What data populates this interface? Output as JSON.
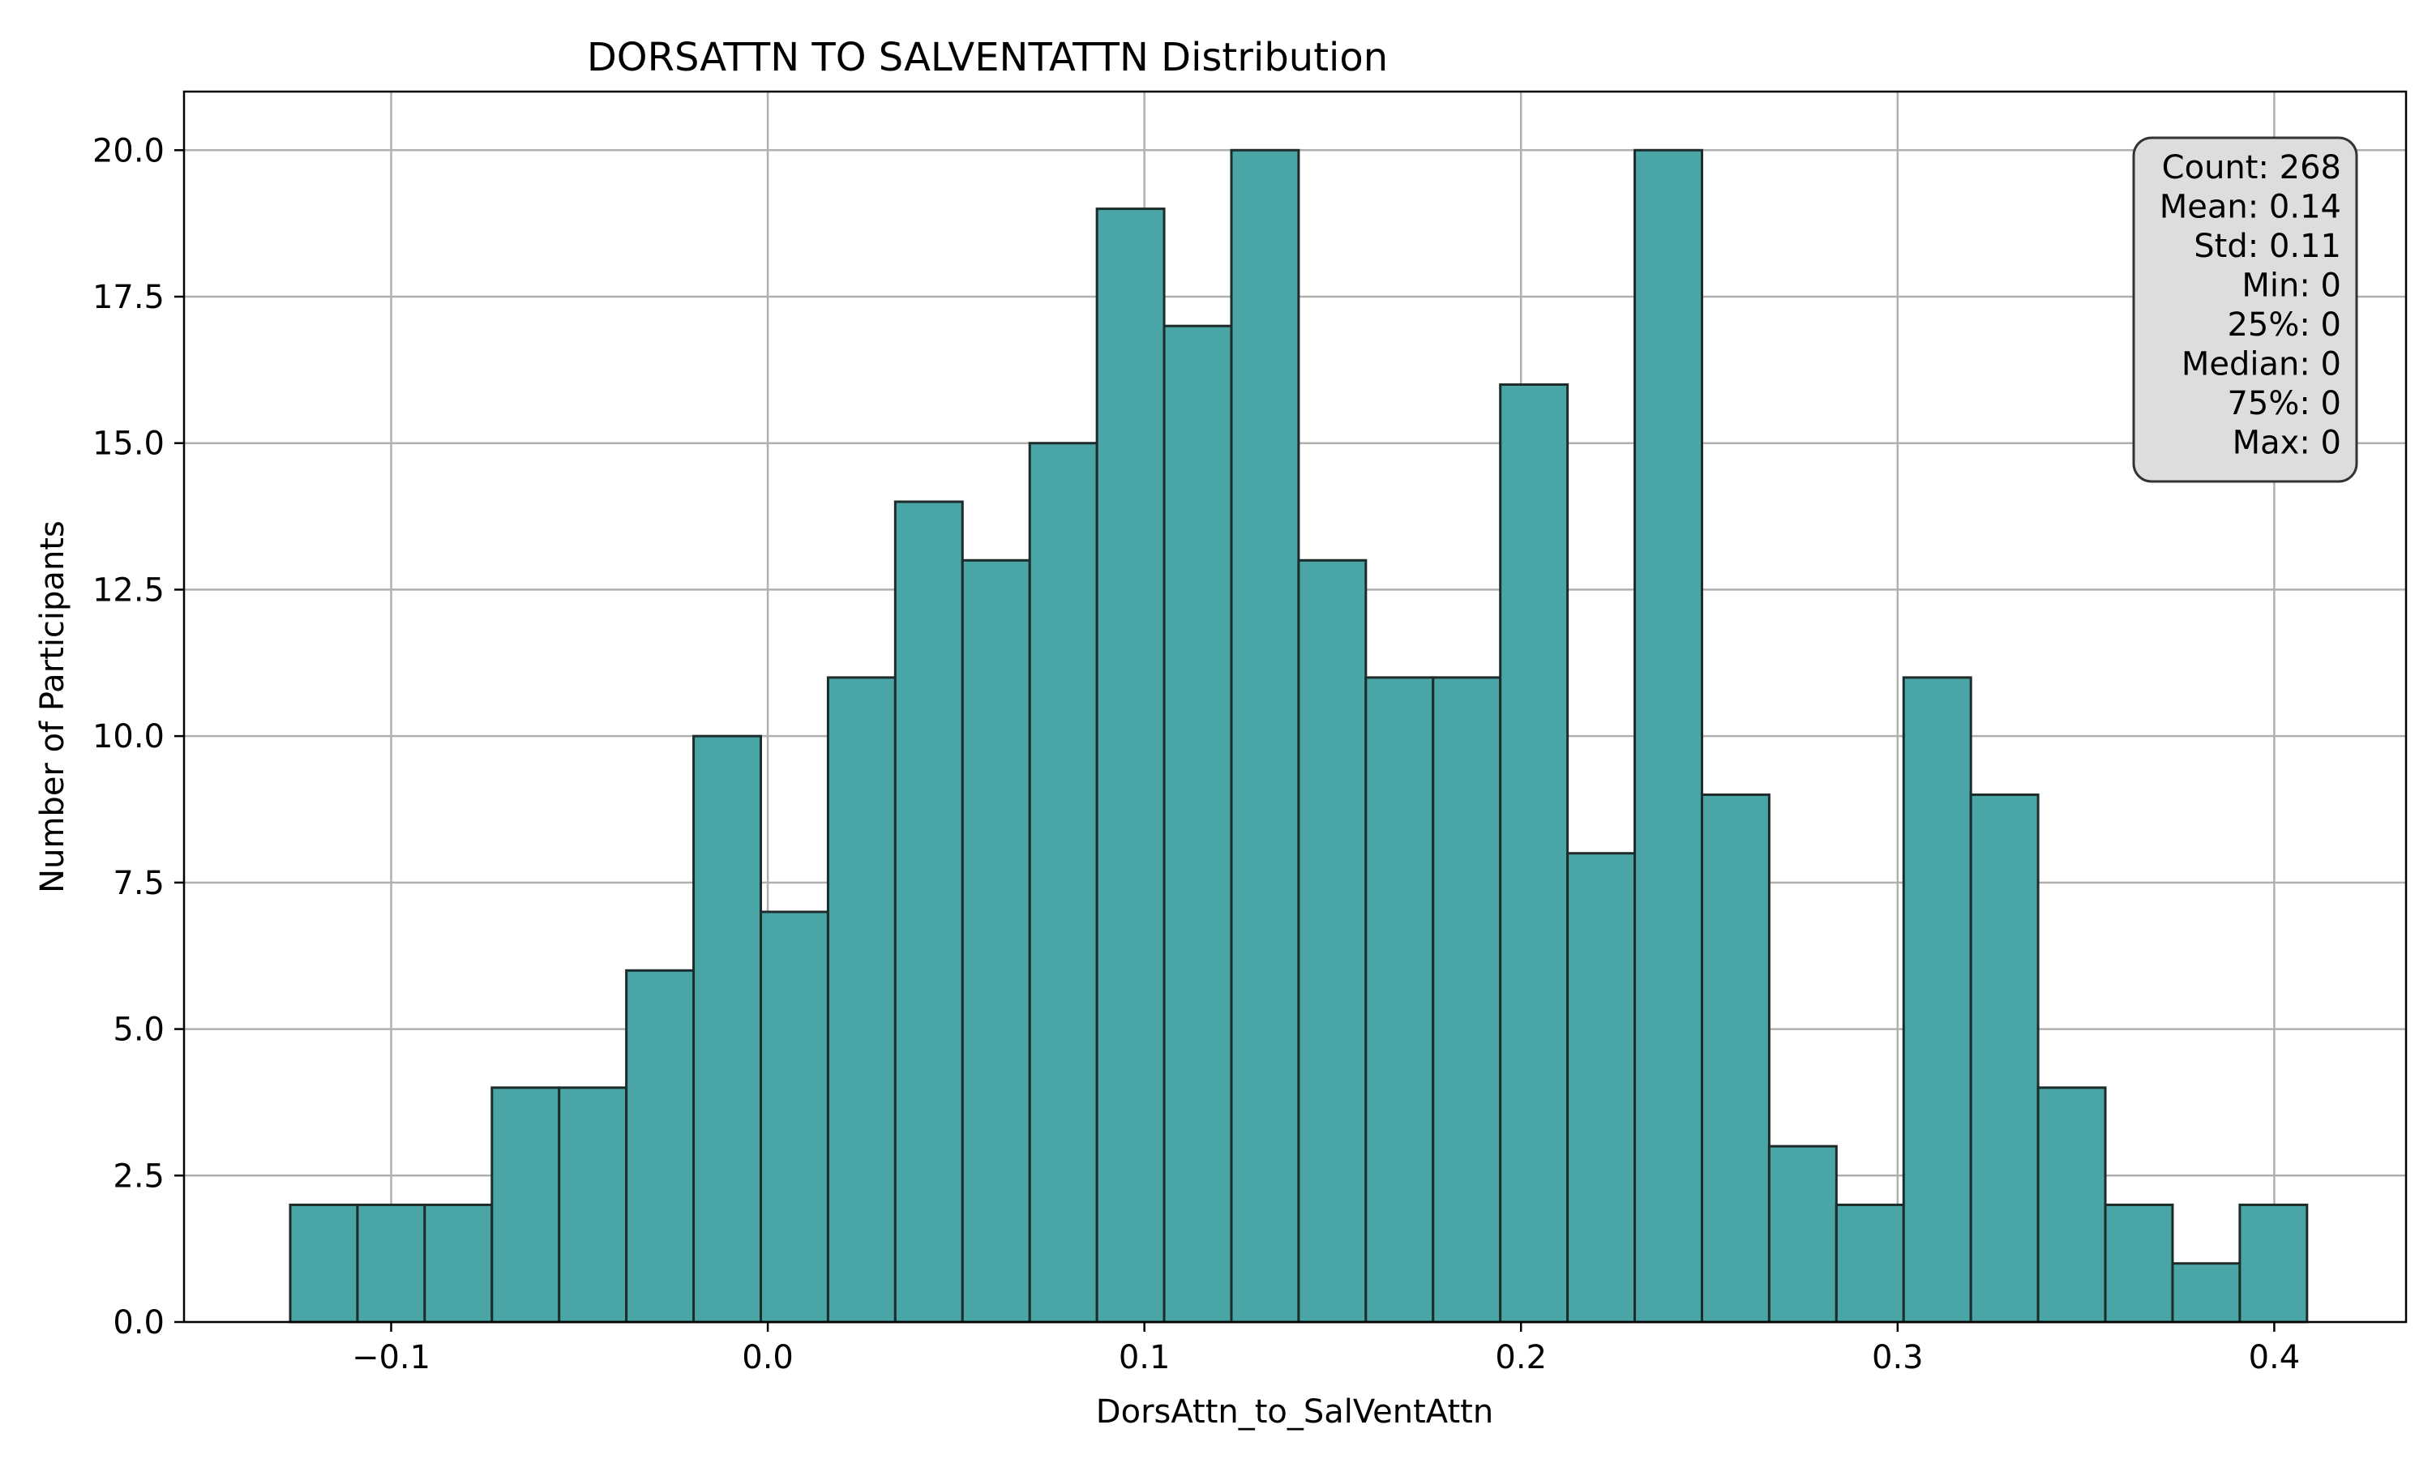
{
  "chart_data": {
    "type": "bar",
    "title": "DORSATTN TO SALVENTATTN Distribution",
    "xlabel": "DorsAttn_to_SalVentAttn",
    "ylabel": "Number of Participants",
    "xlim": [
      -0.155,
      0.435
    ],
    "ylim": [
      0,
      21
    ],
    "grid": true,
    "x_ticks": [
      -0.1,
      0.0,
      0.1,
      0.2,
      0.3,
      0.4
    ],
    "x_tick_labels": [
      "−0.1",
      "0.0",
      "0.1",
      "0.2",
      "0.3",
      "0.4"
    ],
    "y_ticks": [
      0,
      2.5,
      5,
      7.5,
      10,
      12.5,
      15,
      17.5,
      20
    ],
    "y_tick_labels": [
      "0.0",
      "2.5",
      "5.0",
      "7.5",
      "10.0",
      "12.5",
      "15.0",
      "17.5",
      "20.0"
    ],
    "bin_start": -0.1268,
    "bin_width": 0.01785,
    "values": [
      2,
      2,
      2,
      4,
      4,
      6,
      10,
      7,
      11,
      14,
      13,
      15,
      19,
      17,
      20,
      13,
      11,
      11,
      16,
      8,
      20,
      9,
      3,
      2,
      11,
      9,
      4,
      2,
      1,
      2
    ],
    "bar_color": "#4aa6a6",
    "edge_color": "#1e2b2b",
    "stats_box": {
      "position": "top-right",
      "lines": [
        "Count: 268",
        "Mean: 0.14",
        "Std: 0.11",
        "Min: 0",
        "25%: 0",
        "Median: 0",
        "75%: 0",
        "Max: 0"
      ]
    }
  }
}
